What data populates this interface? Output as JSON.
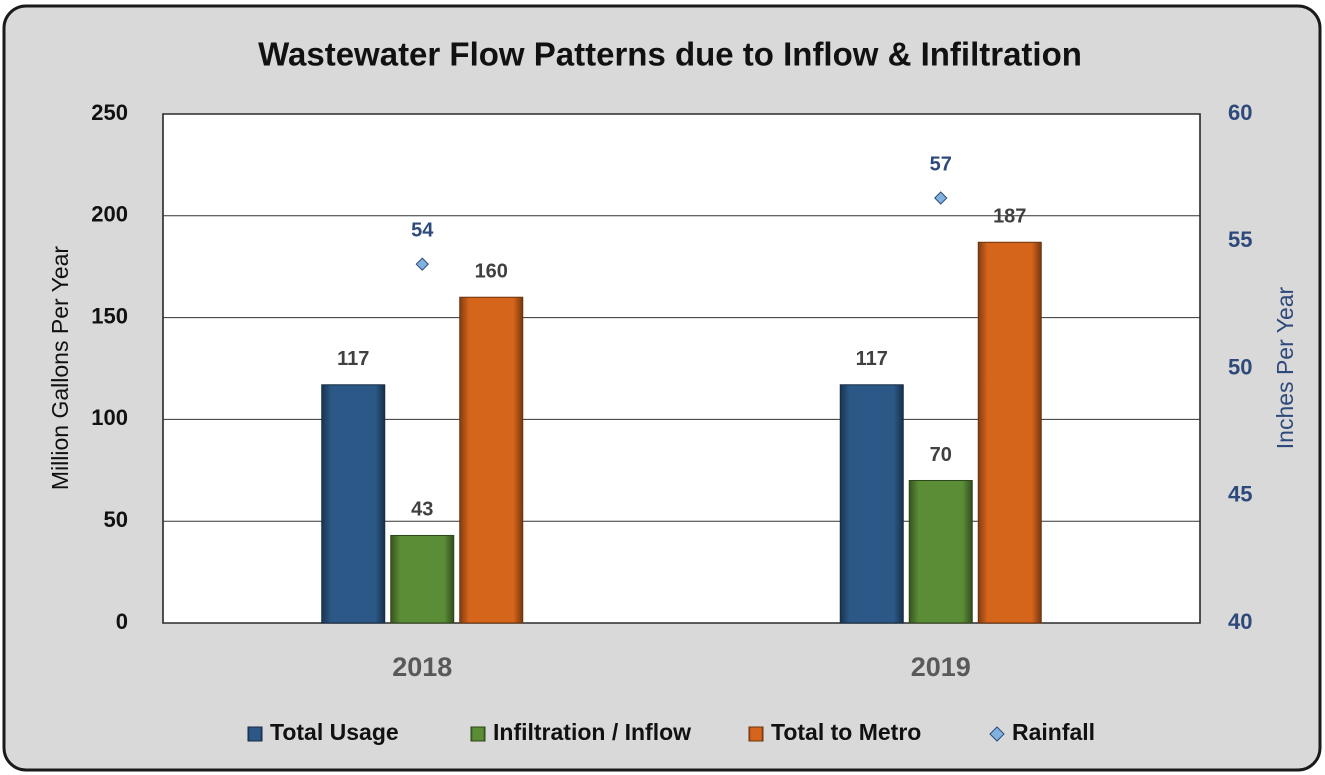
{
  "chart_data": {
    "type": "bar",
    "title": "Wastewater Flow Patterns due to Inflow & Infiltration",
    "categories": [
      "2018",
      "2019"
    ],
    "series": [
      {
        "name": "Total Usage",
        "color": "#2b5886",
        "values": [
          117,
          117
        ]
      },
      {
        "name": "Infiltration / Inflow",
        "color": "#5b8c36",
        "values": [
          43,
          70
        ]
      },
      {
        "name": "Total to Metro",
        "color": "#d6651c",
        "values": [
          160,
          187
        ]
      },
      {
        "name": "Rainfall",
        "color": "#7fb3de",
        "type": "scatter",
        "axis": "y2",
        "values": [
          54.1,
          56.7
        ],
        "value_labels": [
          "54",
          "57"
        ]
      }
    ],
    "ylabel": "Million Gallons Per Year",
    "y2label": "Inches Per Year",
    "ylim": [
      0,
      250
    ],
    "yticks": [
      0,
      50,
      100,
      150,
      200,
      250
    ],
    "y2lim": [
      40,
      60
    ],
    "y2ticks": [
      40,
      45,
      50,
      55,
      60
    ],
    "grid": true,
    "legend": "bottom"
  }
}
